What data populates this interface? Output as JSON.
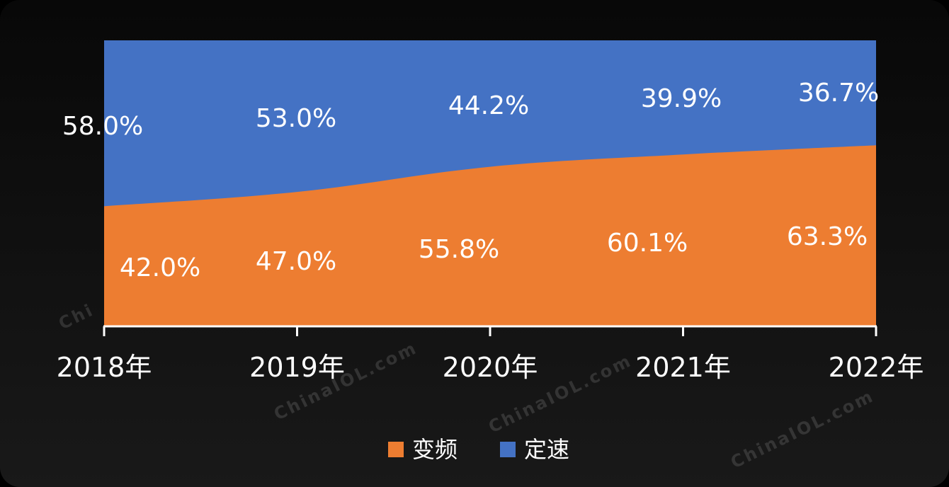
{
  "watermark": "ChinaIOL.com",
  "chart_data": {
    "type": "area",
    "stacked": true,
    "percent": true,
    "categories": [
      "2018年",
      "2019年",
      "2020年",
      "2021年",
      "2022年"
    ],
    "series": [
      {
        "name": "变频",
        "color": "#ED7D31",
        "values": [
          42.0,
          47.0,
          55.8,
          60.1,
          63.3
        ],
        "labels": [
          "42.0%",
          "47.0%",
          "55.8%",
          "60.1%",
          "63.3%"
        ]
      },
      {
        "name": "定速",
        "color": "#4472C4",
        "values": [
          58.0,
          53.0,
          44.2,
          39.9,
          36.7
        ],
        "labels": [
          "58.0%",
          "53.0%",
          "44.2%",
          "39.9%",
          "36.7%"
        ]
      }
    ],
    "ylim": [
      0,
      100
    ],
    "grid": false,
    "legend": "bottom-center"
  }
}
